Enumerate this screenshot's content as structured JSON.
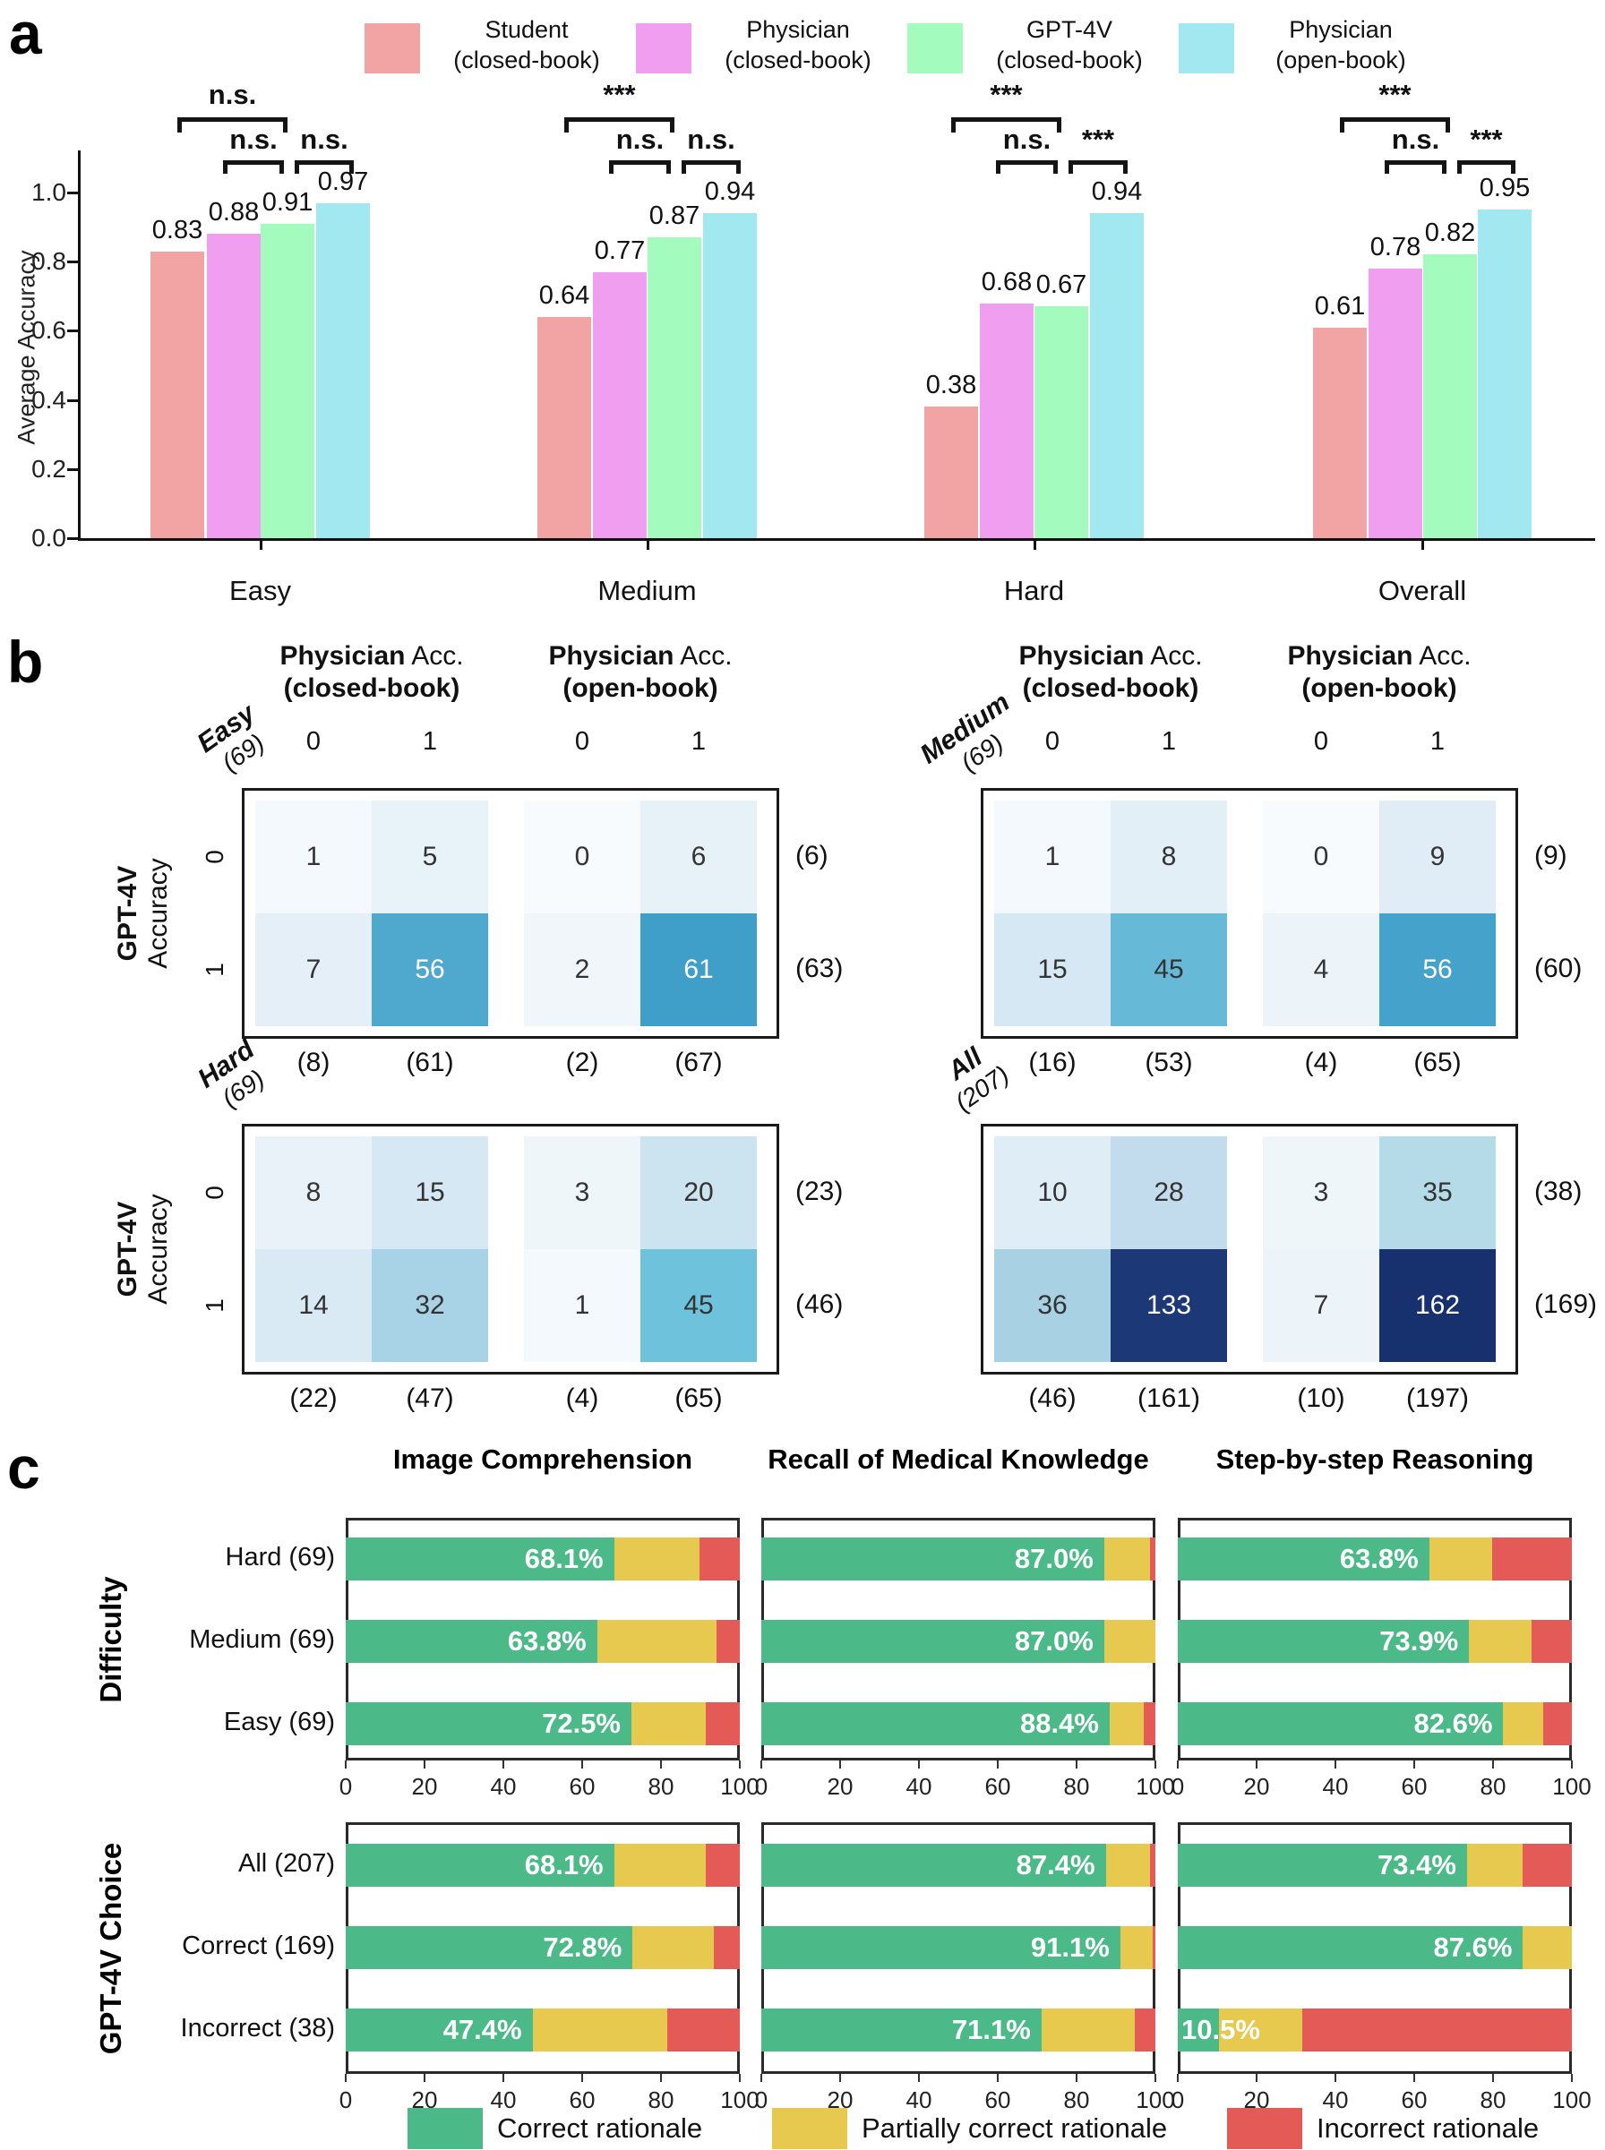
{
  "panel_letters": {
    "a": "a",
    "b": "b",
    "c": "c"
  },
  "chart_data": [
    {
      "type": "bar",
      "panel": "a",
      "ylabel": "Average Accuracy",
      "ylim": [
        0.0,
        1.0
      ],
      "y_ticks": [
        "1.0",
        "0.8",
        "0.6",
        "0.4",
        "0.2",
        "0.0"
      ],
      "categories": [
        "Easy",
        "Medium",
        "Hard",
        "Overall"
      ],
      "series": [
        {
          "name": "Student",
          "book": "(closed-book)",
          "color": "#F2A3A3",
          "values": [
            0.83,
            0.64,
            0.38,
            0.61
          ]
        },
        {
          "name": "Physician",
          "book": "(closed-book)",
          "color": "#F09EF0",
          "values": [
            0.88,
            0.77,
            0.68,
            0.78
          ]
        },
        {
          "name": "GPT-4V",
          "book": "(closed-book)",
          "color": "#A3FBBD",
          "values": [
            0.91,
            0.87,
            0.67,
            0.82
          ]
        },
        {
          "name": "Physician",
          "book": "(open-book)",
          "color": "#A2E8F1",
          "values": [
            0.97,
            0.94,
            0.94,
            0.95
          ]
        }
      ],
      "significance": [
        [
          "n.s.",
          "n.s.",
          "n.s."
        ],
        [
          "***",
          "n.s.",
          "n.s."
        ],
        [
          "***",
          "n.s.",
          "***"
        ],
        [
          "***",
          "n.s.",
          "***"
        ]
      ],
      "legend_position": "top",
      "grid": false
    },
    {
      "type": "heatmap",
      "title": "Easy",
      "count": "(69)",
      "values": [
        [
          1,
          5,
          0,
          6
        ],
        [
          7,
          56,
          2,
          61
        ]
      ],
      "row_totals": [
        "(6)",
        "(63)"
      ],
      "col_totals": [
        "(8)",
        "(61)",
        "(2)",
        "(67)"
      ],
      "cell_bg": [
        [
          "#F3F9FC",
          "#E8F2F9",
          "#F7FBFD",
          "#E6F1F8"
        ],
        [
          "#E4EFF7",
          "#4FA9CE",
          "#F0F6FA",
          "#3F9FC8"
        ]
      ],
      "cell_fg": [
        [
          "#333333",
          "#333333",
          "#333333",
          "#333333"
        ],
        [
          "#333333",
          "#FFFFFF",
          "#333333",
          "#FFFFFF"
        ]
      ]
    },
    {
      "type": "heatmap",
      "title": "Medium",
      "count": "(69)",
      "values": [
        [
          1,
          8,
          0,
          9
        ],
        [
          15,
          45,
          4,
          56
        ]
      ],
      "row_totals": [
        "(9)",
        "(60)"
      ],
      "col_totals": [
        "(16)",
        "(53)",
        "(4)",
        "(65)"
      ],
      "cell_bg": [
        [
          "#F3F9FC",
          "#E3EFF7",
          "#F7FBFD",
          "#E1EDF6"
        ],
        [
          "#D6E8F3",
          "#66BAD8",
          "#ECF4F9",
          "#45A3CB"
        ]
      ],
      "cell_fg": [
        [
          "#333333",
          "#333333",
          "#333333",
          "#333333"
        ],
        [
          "#333333",
          "#333333",
          "#333333",
          "#FFFFFF"
        ]
      ]
    },
    {
      "type": "heatmap",
      "title": "Hard",
      "count": "(69)",
      "values": [
        [
          8,
          15,
          3,
          20
        ],
        [
          14,
          32,
          1,
          45
        ]
      ],
      "row_totals": [
        "(23)",
        "(46)"
      ],
      "col_totals": [
        "(22)",
        "(47)",
        "(4)",
        "(65)"
      ],
      "cell_bg": [
        [
          "#E9F2F9",
          "#D6E8F3",
          "#EFF6FA",
          "#CCE3F0"
        ],
        [
          "#DAEAF4",
          "#A8D3E6",
          "#F3F9FC",
          "#6FC2DB"
        ]
      ],
      "cell_fg": [
        [
          "#333333",
          "#333333",
          "#333333",
          "#333333"
        ],
        [
          "#333333",
          "#333333",
          "#333333",
          "#333333"
        ]
      ]
    },
    {
      "type": "heatmap",
      "title": "All",
      "count": "(207)",
      "values": [
        [
          10,
          28,
          3,
          35
        ],
        [
          36,
          133,
          7,
          162
        ]
      ],
      "row_totals": [
        "(38)",
        "(169)"
      ],
      "col_totals": [
        "(46)",
        "(161)",
        "(10)",
        "(197)"
      ],
      "cell_bg": [
        [
          "#DFEDF6",
          "#C2DCEE",
          "#EFF6FA",
          "#B5DBE9"
        ],
        [
          "#A8D2E4",
          "#1C3876",
          "#ECF4F9",
          "#16316E"
        ]
      ],
      "cell_fg": [
        [
          "#333333",
          "#333333",
          "#333333",
          "#333333"
        ],
        [
          "#333333",
          "#FFFFFF",
          "#333333",
          "#FFFFFF"
        ]
      ]
    },
    {
      "type": "bar",
      "orientation": "horizontal",
      "stacked": true,
      "column": "Image Comprehension",
      "row_group": "Difficulty",
      "categories": [
        "Hard (69)",
        "Medium (69)",
        "Easy (69)"
      ],
      "series": [
        {
          "name": "Correct rationale",
          "values": [
            68.1,
            63.8,
            72.5
          ]
        },
        {
          "name": "Partially correct rationale",
          "values": [
            21.7,
            30.4,
            18.8
          ]
        },
        {
          "name": "Incorrect rationale",
          "values": [
            10.2,
            5.8,
            8.7
          ]
        }
      ],
      "bar_labels": [
        "68.1%",
        "63.8%",
        "72.5%"
      ],
      "xlim": [
        0,
        100
      ]
    },
    {
      "type": "bar",
      "orientation": "horizontal",
      "stacked": true,
      "column": "Recall of Medical Knowledge",
      "row_group": "Difficulty",
      "categories": [
        "Hard (69)",
        "Medium (69)",
        "Easy (69)"
      ],
      "series": [
        {
          "name": "Correct rationale",
          "values": [
            87.0,
            87.0,
            88.4
          ]
        },
        {
          "name": "Partially correct rationale",
          "values": [
            11.6,
            13.0,
            8.7
          ]
        },
        {
          "name": "Incorrect rationale",
          "values": [
            1.4,
            0.0,
            2.9
          ]
        }
      ],
      "bar_labels": [
        "87.0%",
        "87.0%",
        "88.4%"
      ],
      "xlim": [
        0,
        100
      ]
    },
    {
      "type": "bar",
      "orientation": "horizontal",
      "stacked": true,
      "column": "Step-by-step Reasoning",
      "row_group": "Difficulty",
      "categories": [
        "Hard (69)",
        "Medium (69)",
        "Easy (69)"
      ],
      "series": [
        {
          "name": "Correct rationale",
          "values": [
            63.8,
            73.9,
            82.6
          ]
        },
        {
          "name": "Partially correct rationale",
          "values": [
            15.9,
            15.9,
            10.1
          ]
        },
        {
          "name": "Incorrect rationale",
          "values": [
            20.3,
            10.2,
            7.3
          ]
        }
      ],
      "bar_labels": [
        "63.8%",
        "73.9%",
        "82.6%"
      ],
      "xlim": [
        0,
        100
      ]
    },
    {
      "type": "bar",
      "orientation": "horizontal",
      "stacked": true,
      "column": "Image Comprehension",
      "row_group": "GPT-4V Choice",
      "categories": [
        "All (207)",
        "Correct (169)",
        "Incorrect (38)"
      ],
      "series": [
        {
          "name": "Correct rationale",
          "values": [
            68.1,
            72.8,
            47.4
          ]
        },
        {
          "name": "Partially correct rationale",
          "values": [
            23.2,
            20.7,
            34.2
          ]
        },
        {
          "name": "Incorrect rationale",
          "values": [
            8.7,
            6.5,
            18.4
          ]
        }
      ],
      "bar_labels": [
        "68.1%",
        "72.8%",
        "47.4%"
      ],
      "xlim": [
        0,
        100
      ]
    },
    {
      "type": "bar",
      "orientation": "horizontal",
      "stacked": true,
      "column": "Recall of Medical Knowledge",
      "row_group": "GPT-4V Choice",
      "categories": [
        "All (207)",
        "Correct (169)",
        "Incorrect (38)"
      ],
      "series": [
        {
          "name": "Correct rationale",
          "values": [
            87.4,
            91.1,
            71.1
          ]
        },
        {
          "name": "Partially correct rationale",
          "values": [
            11.2,
            8.3,
            23.6
          ]
        },
        {
          "name": "Incorrect rationale",
          "values": [
            1.4,
            0.6,
            5.3
          ]
        }
      ],
      "bar_labels": [
        "87.4%",
        "91.1%",
        "71.1%"
      ],
      "xlim": [
        0,
        100
      ]
    },
    {
      "type": "bar",
      "orientation": "horizontal",
      "stacked": true,
      "column": "Step-by-step Reasoning",
      "row_group": "GPT-4V Choice",
      "categories": [
        "All (207)",
        "Correct (169)",
        "Incorrect (38)"
      ],
      "series": [
        {
          "name": "Correct rationale",
          "values": [
            73.4,
            87.6,
            10.5
          ]
        },
        {
          "name": "Partially correct rationale",
          "values": [
            14.0,
            12.4,
            21.1
          ]
        },
        {
          "name": "Incorrect rationale",
          "values": [
            12.6,
            0.0,
            68.4
          ]
        }
      ],
      "bar_labels": [
        "73.4%",
        "87.6%",
        "10.5%"
      ],
      "xlim": [
        0,
        100
      ]
    }
  ],
  "panel_b_labels": {
    "row_axis_bold": "GPT-4V",
    "row_axis_rest": "Accuracy",
    "row_ticks": [
      "0",
      "1"
    ],
    "col_ticks": [
      "0",
      "1",
      "0",
      "1"
    ],
    "col_header_bold": "Physician",
    "col_header_rest": " Acc.",
    "col_subheaders": [
      "(closed-book)",
      "(open-book)"
    ]
  },
  "panel_c_labels": {
    "column_headers": [
      "Image Comprehension",
      "Recall of Medical Knowledge",
      "Step-by-step Reasoning"
    ],
    "group_labels": [
      "Difficulty",
      "GPT-4V Choice"
    ],
    "x_ticks": [
      "0",
      "20",
      "40",
      "60",
      "80",
      "100"
    ],
    "legend": [
      {
        "label": "Correct rationale",
        "color": "#4BBA88"
      },
      {
        "label": "Partially correct rationale",
        "color": "#E8C94F"
      },
      {
        "label": "Incorrect rationale",
        "color": "#E45A57"
      }
    ]
  }
}
